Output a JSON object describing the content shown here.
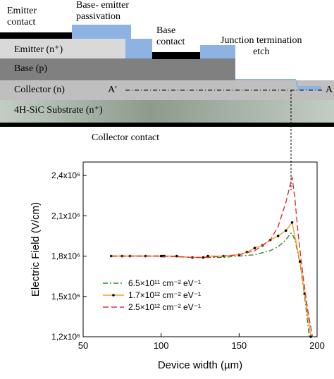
{
  "device": {
    "labels": {
      "emitter_contact": "Emitter\ncontact",
      "base_emitter_passivation": "Base- emitter\npassivation",
      "base_contact": "Base\ncontact",
      "junction_termination": "Junction termination\netch",
      "emitter_layer": "Emitter (n⁺)",
      "base_layer": "Base (p)",
      "collector_layer": "Collector (n)",
      "substrate_layer": "4H-SiC Substrate (n⁺)",
      "collector_contact": "Collector contact",
      "a_prime": "A′",
      "a": "A"
    },
    "colors": {
      "passivation": "#8db3e2",
      "emitter": "#d9d9d9",
      "base": "#808080",
      "collector": "#bfbfbf",
      "substrate": "#bdc7bd",
      "contact": "#000000"
    }
  },
  "chart_data": {
    "type": "line",
    "xlabel": "Device width (µm)",
    "ylabel": "Electric Field (V/cm)",
    "xlim": [
      50,
      200
    ],
    "ylim": [
      1200000.0,
      2500000.0
    ],
    "xticks": [
      50,
      100,
      150,
      200
    ],
    "yticks": [
      1200000.0,
      1500000.0,
      1800000.0,
      2100000.0,
      2400000.0
    ],
    "ytick_labels": [
      "1,2x10⁶",
      "1,5x10⁶",
      "1,8x10⁶",
      "2,1x10⁶",
      "2,4x10⁶"
    ],
    "grid": false,
    "legend_position": "lower-left",
    "series": [
      {
        "name": "6.5×10¹¹ cm⁻² eV⁻¹",
        "color": "#2a8a2a",
        "dash": "7,3,2,3",
        "markers": false,
        "x": [
          68,
          80,
          100,
          120,
          130,
          140,
          150,
          160,
          170,
          175,
          180,
          183,
          184,
          186,
          189,
          192,
          195
        ],
        "y": [
          1800000.0,
          1800000.0,
          1800000.0,
          1790000.0,
          1790000.0,
          1790000.0,
          1800000.0,
          1810000.0,
          1840000.0,
          1870000.0,
          1920000.0,
          1970000.0,
          1970000.0,
          1910000.0,
          1750000.0,
          1500000.0,
          1200000.0
        ]
      },
      {
        "name": "1.7×10¹² cm⁻² eV⁻¹",
        "color": "#f0a030",
        "dash": "",
        "markers": true,
        "x": [
          68,
          75,
          80,
          90,
          100,
          101,
          102,
          110,
          120,
          127,
          130,
          140,
          150,
          155,
          160,
          165,
          170,
          175,
          180,
          184,
          189,
          192,
          196
        ],
        "y": [
          1800000.0,
          1800000.0,
          1800000.0,
          1800000.0,
          1800000.0,
          1800000.0,
          1800000.0,
          1800000.0,
          1790000.0,
          1790000.0,
          1800000.0,
          1800000.0,
          1810000.0,
          1830000.0,
          1860000.0,
          1880000.0,
          1920000.0,
          1950000.0,
          1990000.0,
          2050000.0,
          1760000.0,
          1520000.0,
          1200000.0
        ]
      },
      {
        "name": "2.5×10¹² cm⁻² eV⁻¹",
        "color": "#e03030",
        "dash": "8,4",
        "markers": false,
        "x": [
          68,
          80,
          100,
          120,
          130,
          140,
          150,
          160,
          170,
          175,
          180,
          184,
          186,
          188,
          191,
          194,
          197
        ],
        "y": [
          1800000.0,
          1800000.0,
          1800000.0,
          1790000.0,
          1790000.0,
          1800000.0,
          1810000.0,
          1840000.0,
          1920000.0,
          2020000.0,
          2200000.0,
          2390000.0,
          2200000.0,
          1950000.0,
          1650000.0,
          1400000.0,
          1200000.0
        ]
      }
    ]
  }
}
